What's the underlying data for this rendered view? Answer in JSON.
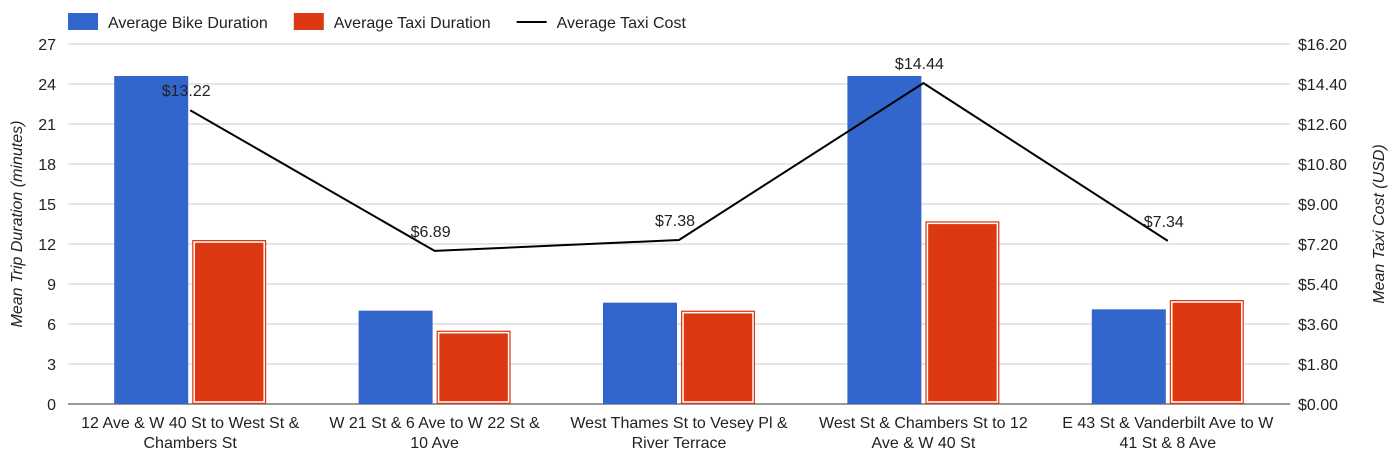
{
  "chart_data": {
    "type": "bar",
    "categories": [
      [
        "12 Ave & W 40 St to West St &",
        "Chambers St"
      ],
      [
        "W 21 St & 6 Ave to W 22 St &",
        "10 Ave"
      ],
      [
        "West Thames St to Vesey Pl &",
        "River Terrace"
      ],
      [
        "West St & Chambers St to 12",
        "Ave & W 40 St"
      ],
      [
        "E 43 St & Vanderbilt Ave to W",
        "41 St & 8 Ave"
      ]
    ],
    "series": [
      {
        "name": "Average Bike Duration",
        "kind": "bar",
        "axis": "left",
        "color": "#3366cc",
        "values": [
          24.6,
          7.0,
          7.6,
          24.6,
          7.1
        ]
      },
      {
        "name": "Average Taxi Duration",
        "kind": "bar",
        "axis": "left",
        "color": "#dc3912",
        "values": [
          12.3,
          5.5,
          7.0,
          13.7,
          7.8
        ]
      },
      {
        "name": "Average Taxi Cost",
        "kind": "line",
        "axis": "right",
        "color": "#000000",
        "values": [
          13.22,
          6.89,
          7.38,
          14.44,
          7.34
        ],
        "labels": [
          "$13.22",
          "$6.89",
          "$7.38",
          "$14.44",
          "$7.34"
        ]
      }
    ],
    "ylabel": "Mean Trip Duration (minutes)",
    "y2label": "Mean Taxi Cost (USD)",
    "ylim": [
      0,
      27
    ],
    "y2lim": [
      0,
      16.2
    ],
    "yticks": [
      "0",
      "3",
      "6",
      "9",
      "12",
      "15",
      "18",
      "21",
      "24",
      "27"
    ],
    "y2ticks": [
      "$0.00",
      "$1.80",
      "$3.60",
      "$5.40",
      "$7.20",
      "$9.00",
      "$10.80",
      "$12.60",
      "$14.40",
      "$16.20"
    ],
    "grid": true,
    "legend_position": "top-left"
  }
}
